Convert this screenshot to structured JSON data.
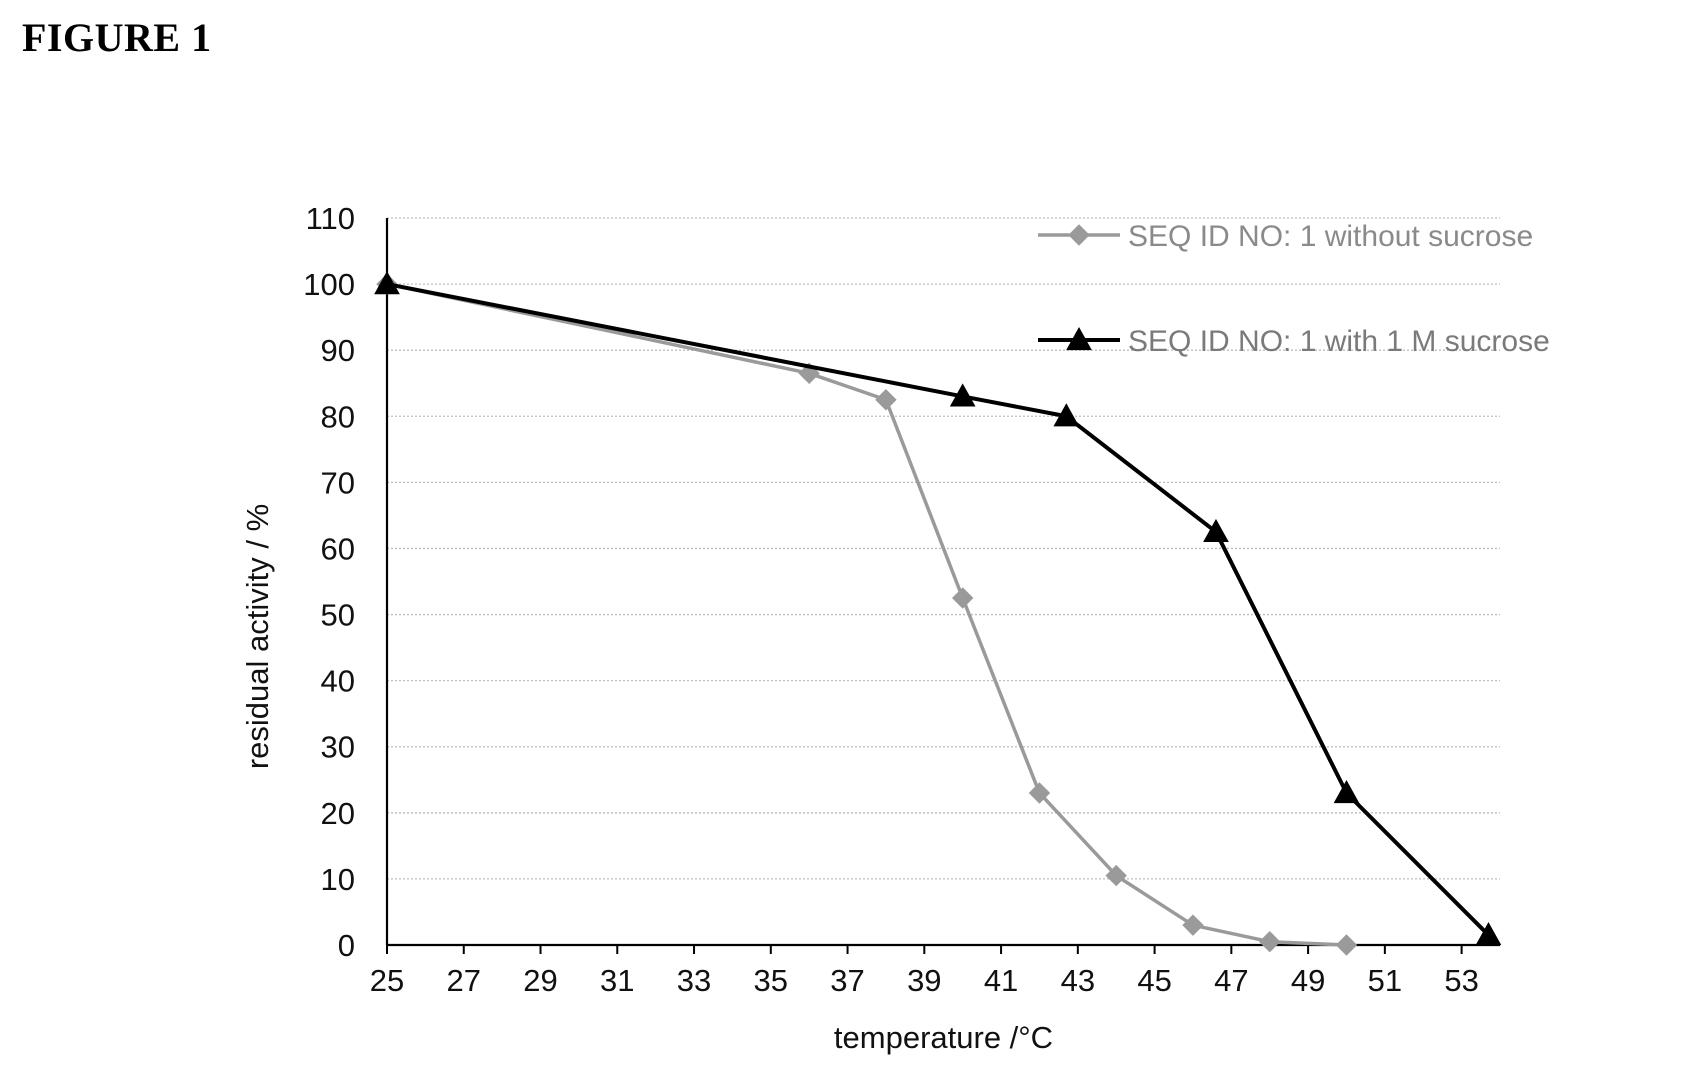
{
  "figure_label": "FIGURE 1",
  "colors": {
    "series_without_sucrose": "#9a9a9a",
    "series_with_sucrose": "#000000",
    "gridline": "#bdbdbd",
    "axis": "#000000",
    "legend_text_without": "#8a8a8a",
    "legend_text_with": "#7a7a7a"
  },
  "chart_data": {
    "type": "line",
    "title": "",
    "xlabel": "temperature /°C",
    "ylabel": "residual activity / %",
    "xlim": [
      25,
      54
    ],
    "ylim": [
      0,
      110
    ],
    "x_ticks": [
      "25",
      "27",
      "29",
      "31",
      "33",
      "35",
      "37",
      "39",
      "41",
      "43",
      "45",
      "47",
      "49",
      "51",
      "53"
    ],
    "y_ticks": [
      "0",
      "10",
      "20",
      "30",
      "40",
      "50",
      "60",
      "70",
      "80",
      "90",
      "100",
      "110"
    ],
    "grid": "horizontal dotted",
    "legend_position": "top-right",
    "series": [
      {
        "name": "SEQ ID NO: 1 without sucrose",
        "marker": "diamond",
        "x": [
          25,
          36,
          38,
          40,
          42,
          44,
          46,
          48,
          50
        ],
        "y": [
          100,
          86.5,
          82.5,
          52.5,
          23,
          10.5,
          3,
          0.5,
          0
        ]
      },
      {
        "name": "SEQ ID NO: 1 with 1 M sucrose",
        "marker": "triangle",
        "x": [
          25,
          40,
          42.7,
          46.6,
          50,
          53.7
        ],
        "y": [
          100,
          83,
          80,
          62.5,
          23,
          1.5
        ]
      }
    ]
  }
}
